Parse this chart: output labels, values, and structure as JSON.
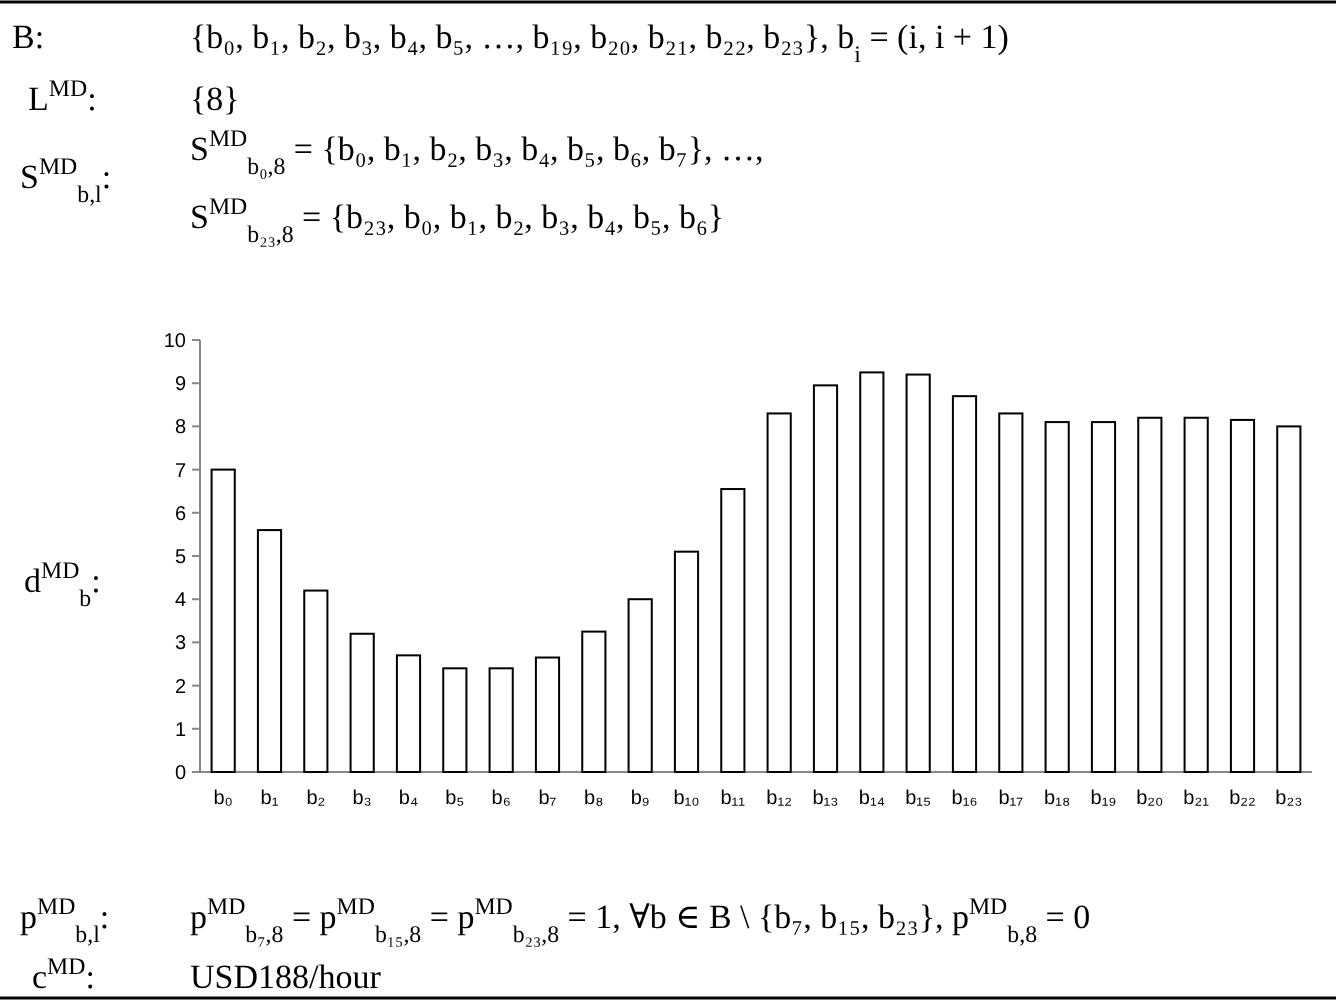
{
  "chart_data": {
    "type": "bar",
    "categories": [
      "b₀",
      "b₁",
      "b₂",
      "b₃",
      "b₄",
      "b₅",
      "b₆",
      "b₇",
      "b₈",
      "b₉",
      "b₁₀",
      "b₁₁",
      "b₁₂",
      "b₁₃",
      "b₁₄",
      "b₁₅",
      "b₁₆",
      "b₁₇",
      "b₁₈",
      "b₁₉",
      "b₂₀",
      "b₂₁",
      "b₂₂",
      "b₂₃"
    ],
    "values": [
      7.0,
      5.6,
      4.2,
      3.2,
      2.7,
      2.4,
      2.4,
      2.65,
      3.25,
      4.0,
      5.1,
      6.55,
      8.3,
      8.95,
      9.25,
      9.2,
      8.7,
      8.3,
      8.1,
      8.1,
      8.2,
      8.2,
      8.15,
      8.0
    ],
    "color": "#ffffff",
    "ylim": [
      0,
      10
    ],
    "yticks": [
      0,
      1,
      2,
      3,
      4,
      5,
      6,
      7,
      8,
      9,
      10
    ],
    "annotations": [
      "B:",
      "{b₀, b₁, b₂, b₃, b₄, b₅, …, b₁₉, b₂₀, b₂₁, b₂₂, b₂₃}, b$_{i}$ = (i, i + 1)",
      "L$^{MD}$:",
      "{8}",
      "S$^{MD}$$_{b,l}$:",
      "S$^{MD}$$_{b₀,8}$ = {b₀, b₁, b₂, b₃, b₄, b₅, b₆, b₇}, …,",
      "S$^{MD}$$_{b₂₃,8}$ = {b₂₃, b₀, b₁, b₂, b₃, b₄, b₅, b₆}",
      "d$^{MD}$$_{b}$:",
      "p$^{MD}$$_{b,l}$:",
      "p$^{MD}$$_{b₇,8}$ = p$^{MD}$$_{b₁₅,8}$ = p$^{MD}$$_{b₂₃,8}$ = 1, ∀b ∈ B \\ {b₇, b₁₅, b₂₃}, p$^{MD}$$_{b,8}$ = 0",
      "c$^{MD}$:",
      "USD188/hour"
    ]
  }
}
